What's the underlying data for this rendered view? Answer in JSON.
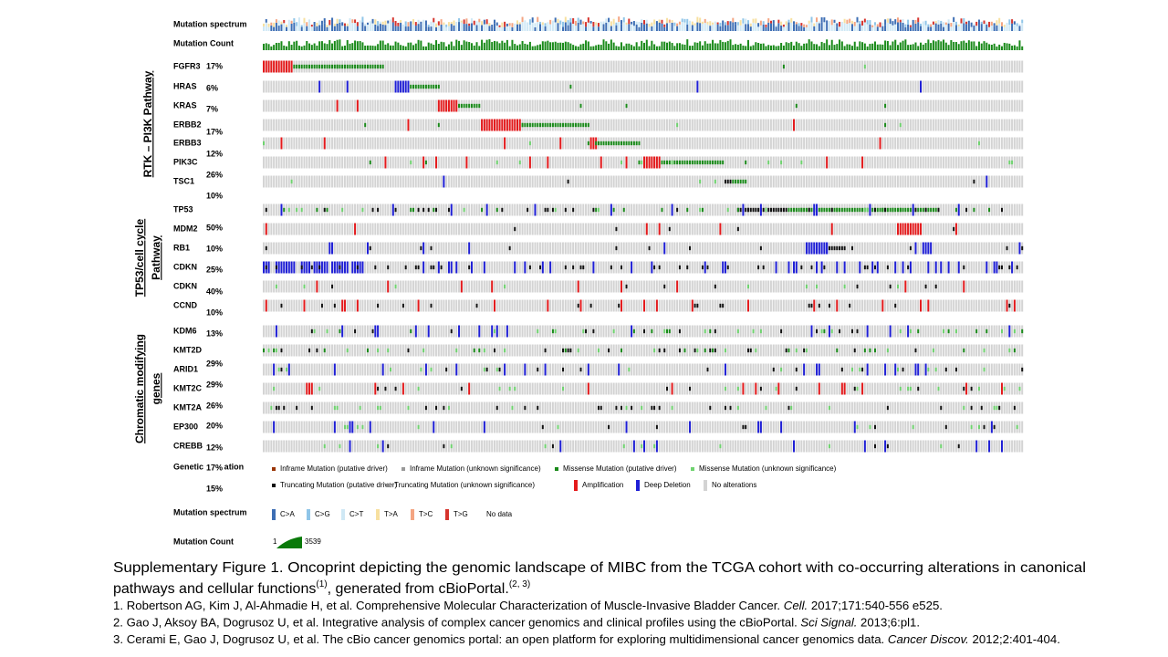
{
  "tracks": {
    "mutation_spectrum": "Mutation spectrum",
    "mutation_count": "Mutation Count"
  },
  "groups": [
    {
      "label": [
        "RTK – PI3K Pathway"
      ],
      "genes": [
        "FGFR3",
        "HRAS",
        "KRAS",
        "ERBB2",
        "ERBB3",
        "PIK3C",
        "TSC1"
      ]
    },
    {
      "label": [
        "TP53/cell cycle",
        "Pathway"
      ],
      "genes": [
        "TP53",
        "MDM2",
        "RB1",
        "CDKN",
        "CDKN",
        "CCND"
      ]
    },
    {
      "label": [
        "Chromatic modifying",
        "genes"
      ],
      "genes": [
        "KDM6",
        "KMT2D",
        "ARID1",
        "KMT2C",
        "KMT2A",
        "EP300",
        "CREBB"
      ]
    }
  ],
  "percentages": [
    "17%",
    "6%",
    "7%",
    "17%",
    "12%",
    "26%",
    "10%",
    "50%",
    "10%",
    "25%",
    "40%",
    "10%",
    "13%",
    "29%",
    "29%",
    "26%",
    "20%",
    "12%",
    "17%",
    "15%"
  ],
  "legend": {
    "title": "Genetic Alteration",
    "alterations": [
      "Inframe Mutation (putative driver)",
      "Inframe Mutation (unknown significance)",
      "Missense Mutation (putative driver)",
      "Missense Mutation (unknown significance)",
      "Truncating Mutation (putative driver)",
      "Truncating Mutation (unknown significance)",
      "Amplification",
      "Deep Deletion",
      "No alterations"
    ],
    "spectrum_title": "Mutation spectrum",
    "spectrum": [
      "C>A",
      "C>G",
      "C>T",
      "T>A",
      "T>C",
      "T>G"
    ],
    "no_data": "No data",
    "count_title": "Mutation Count",
    "count_min": "1",
    "count_max": "3539"
  },
  "caption": {
    "line1": "Supplementary Figure 1. Oncoprint depicting the genomic landscape of MIBC from the TCGA cohort with co-occurring alterations in canonical",
    "line2": "pathways and cellular functions",
    "sup1": "(1)",
    "line2b": ", generated from cBioPortal.",
    "sup2": "(2, 3)"
  },
  "references": [
    {
      "text": "1. Robertson AG, Kim J, Al-Ahmadie H, et al. Comprehensive Molecular Characterization of Muscle-Invasive Bladder Cancer. ",
      "journal": "Cell.",
      "rest": " 2017;171:540-556 e525."
    },
    {
      "text": "2. Gao J, Aksoy BA, Dogrusoz U, et al. Integrative analysis of complex cancer genomics and clinical profiles using the cBioPortal. ",
      "journal": "Sci Signal.",
      "rest": " 2013;6:pl1."
    },
    {
      "text": "3. Cerami E, Gao J, Dogrusoz U, et al. The cBio cancer genomics portal: an open platform for exploring multidimensional cancer genomics data. ",
      "journal": "Cancer Discov.",
      "rest": " 2012;2:401-404."
    }
  ]
}
